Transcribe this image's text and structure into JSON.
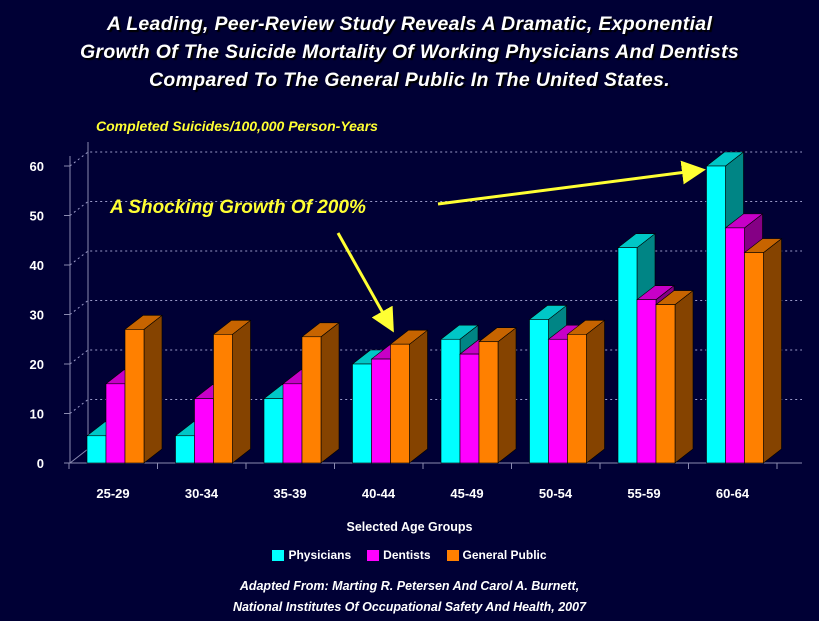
{
  "title_lines": [
    "A Leading, Peer-Review Study Reveals A Dramatic, Exponential",
    "Growth Of The Suicide Mortality Of Working Physicians And Dentists",
    "Compared To The General Public In The United States."
  ],
  "annotation": "A Shocking Growth Of 200%",
  "source_lines": [
    "Adapted From: Marting R. Petersen And Carol A. Burnett,",
    "National Institutes Of Occupational Safety And Health, 2007"
  ],
  "chart_data": {
    "type": "bar",
    "ylabel": "Completed Suicides/100,000 Person-Years",
    "xlabel": "Selected Age Groups",
    "categories": [
      "25-29",
      "30-34",
      "35-39",
      "40-44",
      "45-49",
      "50-54",
      "55-59",
      "60-64"
    ],
    "series": [
      {
        "name": "Physicians",
        "values": [
          5.5,
          5.5,
          13,
          20,
          25,
          29,
          43.5,
          60
        ],
        "color": "#00ffff"
      },
      {
        "name": "Dentists",
        "values": [
          16,
          13,
          16,
          21,
          22,
          25,
          33,
          47.5
        ],
        "color": "#ff00ff"
      },
      {
        "name": "General Public",
        "values": [
          27,
          26,
          25.5,
          24,
          24.5,
          26,
          32,
          42.5
        ],
        "color": "#ff8000"
      }
    ],
    "yticks": [
      0,
      10,
      20,
      30,
      40,
      50,
      60
    ],
    "ylim": [
      0,
      60
    ],
    "grid": true,
    "legend": "bottom-center"
  }
}
